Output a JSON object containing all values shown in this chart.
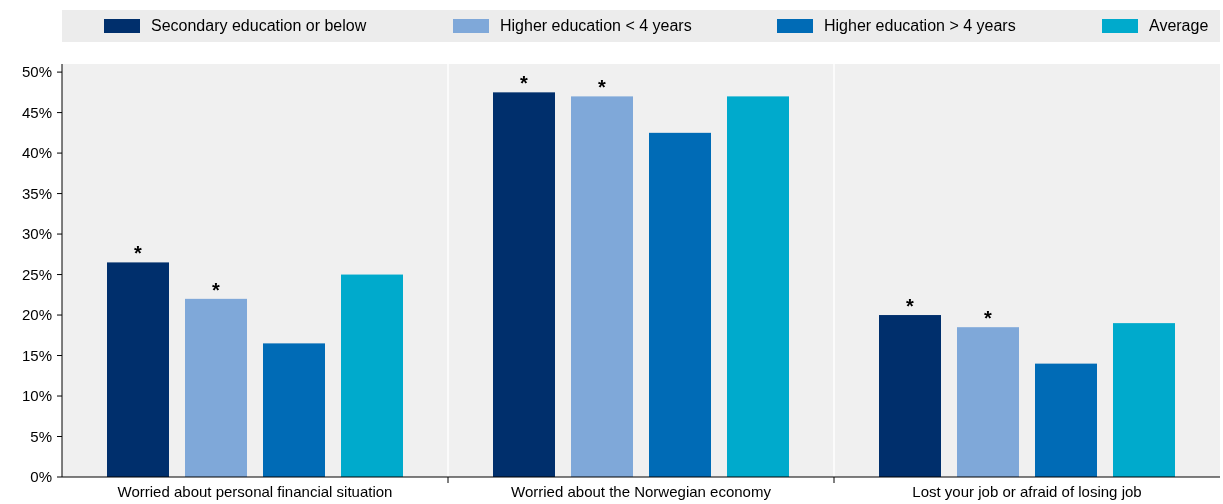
{
  "chart_data": {
    "type": "bar",
    "categories": [
      "Worried about personal financial situation",
      "Worried about the Norwegian economy",
      "Lost your job or afraid of losing job"
    ],
    "series": [
      {
        "name": "Secondary education or below",
        "color": "#002f6c",
        "values": [
          26.5,
          47.5,
          20
        ],
        "value_labels": [
          "*",
          "*",
          "*"
        ]
      },
      {
        "name": "Higher education < 4 years",
        "color": "#7fa8d9",
        "values": [
          22,
          47,
          18.5
        ],
        "value_labels": [
          "*",
          "*",
          "*"
        ]
      },
      {
        "name": "Higher education > 4 years",
        "color": "#006bb6",
        "values": [
          16.5,
          42.5,
          14
        ]
      },
      {
        "name": "Average",
        "color": "#00aacc",
        "values": [
          25,
          47,
          19
        ]
      }
    ],
    "ylim": [
      0,
      51
    ],
    "yticks": [
      {
        "value": 0,
        "label": "0%"
      },
      {
        "value": 5,
        "label": "5%"
      },
      {
        "value": 10,
        "label": "10%"
      },
      {
        "value": 15,
        "label": "15%"
      },
      {
        "value": 20,
        "label": "20%"
      },
      {
        "value": 25,
        "label": "25%"
      },
      {
        "value": 30,
        "label": "30%"
      },
      {
        "value": 35,
        "label": "35%"
      },
      {
        "value": 40,
        "label": "40%"
      },
      {
        "value": 45,
        "label": "45%"
      },
      {
        "value": 50,
        "label": "50%"
      }
    ],
    "legend": "top",
    "grid": false
  }
}
